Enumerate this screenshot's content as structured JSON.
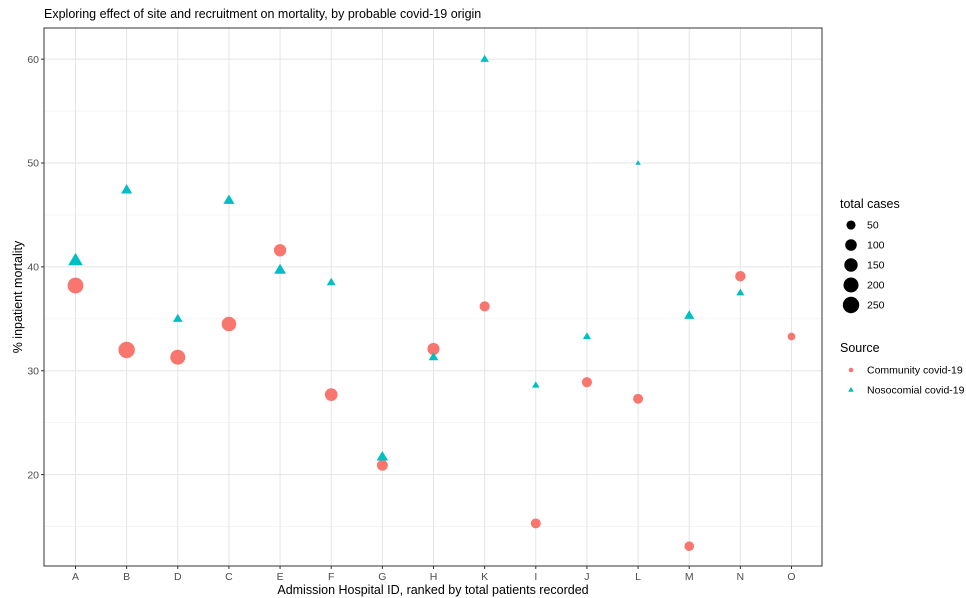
{
  "chart_data": {
    "type": "scatter",
    "title": "Exploring effect of site and recruitment on mortality, by probable covid-19 origin",
    "xlabel": "Admission Hospital ID, ranked by total patients recorded",
    "ylabel": "% inpatient mortality",
    "categories": [
      "A",
      "B",
      "D",
      "C",
      "E",
      "F",
      "G",
      "H",
      "K",
      "I",
      "J",
      "L",
      "M",
      "N",
      "O"
    ],
    "ylim": [
      11.2,
      63
    ],
    "yticks": [
      20,
      30,
      40,
      50,
      60
    ],
    "grid": true,
    "legend_position": "right",
    "size_legend": {
      "title": "total cases",
      "values": [
        50,
        100,
        150,
        200,
        250
      ],
      "labels": [
        "50",
        "100",
        "150",
        "200",
        "250"
      ]
    },
    "color_legend": {
      "title": "Source"
    },
    "series": [
      {
        "name": "Community covid-19",
        "marker": "circle",
        "color": "#F8766D",
        "points": [
          {
            "x": "A",
            "y": 38.2,
            "size": 230
          },
          {
            "x": "B",
            "y": 32.0,
            "size": 250
          },
          {
            "x": "D",
            "y": 31.3,
            "size": 200
          },
          {
            "x": "C",
            "y": 34.5,
            "size": 185
          },
          {
            "x": "E",
            "y": 41.6,
            "size": 120
          },
          {
            "x": "F",
            "y": 27.7,
            "size": 130
          },
          {
            "x": "G",
            "y": 20.9,
            "size": 85
          },
          {
            "x": "H",
            "y": 32.1,
            "size": 115
          },
          {
            "x": "K",
            "y": 36.2,
            "size": 70
          },
          {
            "x": "I",
            "y": 15.3,
            "size": 65
          },
          {
            "x": "J",
            "y": 28.9,
            "size": 70
          },
          {
            "x": "L",
            "y": 27.3,
            "size": 65
          },
          {
            "x": "M",
            "y": 13.1,
            "size": 60
          },
          {
            "x": "N",
            "y": 39.1,
            "size": 75
          },
          {
            "x": "O",
            "y": 33.3,
            "size": 30
          }
        ]
      },
      {
        "name": "Nosocomial covid-19",
        "marker": "triangle",
        "color": "#00BFC4",
        "points": [
          {
            "x": "A",
            "y": 40.6,
            "size": 150
          },
          {
            "x": "B",
            "y": 47.4,
            "size": 70
          },
          {
            "x": "D",
            "y": 35.0,
            "size": 45
          },
          {
            "x": "C",
            "y": 46.4,
            "size": 70
          },
          {
            "x": "E",
            "y": 39.7,
            "size": 85
          },
          {
            "x": "F",
            "y": 38.5,
            "size": 35
          },
          {
            "x": "G",
            "y": 21.7,
            "size": 75
          },
          {
            "x": "H",
            "y": 31.3,
            "size": 45
          },
          {
            "x": "K",
            "y": 60.0,
            "size": 30
          },
          {
            "x": "I",
            "y": 28.6,
            "size": 20
          },
          {
            "x": "J",
            "y": 33.3,
            "size": 25
          },
          {
            "x": "L",
            "y": 50.0,
            "size": 5
          },
          {
            "x": "M",
            "y": 35.3,
            "size": 55
          },
          {
            "x": "N",
            "y": 37.5,
            "size": 25
          }
        ]
      }
    ]
  }
}
